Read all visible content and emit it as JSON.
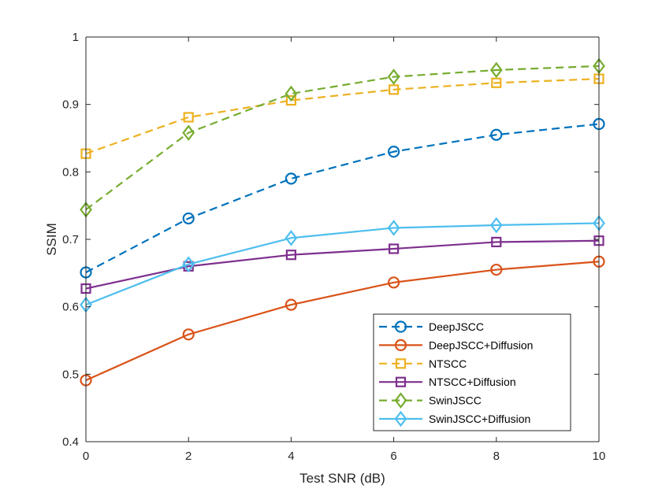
{
  "chart_data": {
    "type": "line",
    "title": "",
    "xlabel": "Test SNR (dB)",
    "ylabel": "SSIM",
    "xlim": [
      0,
      10
    ],
    "ylim": [
      0.4,
      1
    ],
    "xticks": [
      0,
      2,
      4,
      6,
      8,
      10
    ],
    "xtick_labels": [
      "0",
      "2",
      "4",
      "6",
      "8",
      "10"
    ],
    "yticks": [
      0.4,
      0.5,
      0.6,
      0.7,
      0.8,
      0.9,
      1
    ],
    "ytick_labels": [
      "0.4",
      "0.5",
      "0.6",
      "0.7",
      "0.8",
      "0.9",
      "1"
    ],
    "grid": false,
    "legend_position": "bottom-right",
    "x": [
      0,
      2,
      4,
      6,
      8,
      10
    ],
    "series": [
      {
        "name": "DeepJSCC",
        "values": [
          0.651,
          0.731,
          0.79,
          0.83,
          0.855,
          0.871
        ],
        "color": "#0072BD",
        "line_style": "dashed",
        "marker": "circle"
      },
      {
        "name": "DeepJSCC+Diffusion",
        "values": [
          0.491,
          0.559,
          0.603,
          0.636,
          0.655,
          0.667
        ],
        "color": "#D95319",
        "line_style": "solid",
        "marker": "circle"
      },
      {
        "name": "NTSCC",
        "values": [
          0.827,
          0.881,
          0.906,
          0.922,
          0.932,
          0.938
        ],
        "color": "#EDB120",
        "line_style": "dashed",
        "marker": "square"
      },
      {
        "name": "NTSCC+Diffusion",
        "values": [
          0.627,
          0.66,
          0.677,
          0.686,
          0.696,
          0.698
        ],
        "color": "#7E2F8E",
        "line_style": "solid",
        "marker": "square"
      },
      {
        "name": "SwinJSCC",
        "values": [
          0.744,
          0.858,
          0.916,
          0.941,
          0.951,
          0.957
        ],
        "color": "#77AC30",
        "line_style": "dashed",
        "marker": "diamond"
      },
      {
        "name": "SwinJSCC+Diffusion",
        "values": [
          0.603,
          0.663,
          0.702,
          0.717,
          0.721,
          0.724
        ],
        "color": "#4DBEEE",
        "line_style": "solid",
        "marker": "diamond"
      }
    ]
  }
}
